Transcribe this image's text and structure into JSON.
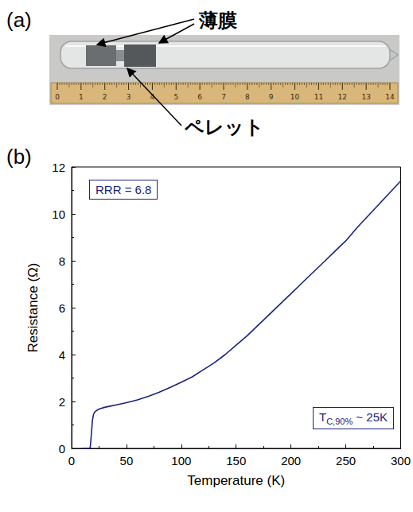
{
  "photo": {
    "letter": "(a)",
    "film_label": "薄膜",
    "pellet_label": "ペレット",
    "ruler_ticks": [
      0,
      1,
      2,
      3,
      4,
      5,
      6,
      7,
      8,
      9,
      10,
      11,
      12,
      13,
      14
    ]
  },
  "chart_letter": "(b)",
  "chart_data": {
    "type": "line",
    "x_label": "Temperature (K)",
    "y_label": "Resistance (Ω)",
    "x": [
      10,
      14,
      16,
      17,
      18,
      19,
      20,
      21,
      23,
      25,
      30,
      35,
      40,
      50,
      60,
      70,
      80,
      90,
      100,
      110,
      120,
      130,
      140,
      150,
      160,
      170,
      180,
      190,
      200,
      210,
      220,
      230,
      240,
      250,
      260,
      270,
      280,
      290,
      300
    ],
    "values": [
      0,
      0,
      0,
      0.05,
      0.6,
      1.2,
      1.45,
      1.55,
      1.62,
      1.68,
      1.75,
      1.8,
      1.85,
      1.95,
      2.07,
      2.22,
      2.4,
      2.6,
      2.82,
      3.05,
      3.35,
      3.65,
      4.0,
      4.4,
      4.8,
      5.25,
      5.7,
      6.15,
      6.6,
      7.05,
      7.5,
      7.95,
      8.4,
      8.85,
      9.4,
      9.9,
      10.4,
      10.9,
      11.4
    ],
    "color": "#1a237e",
    "xlim": [
      0,
      300
    ],
    "xticks": [
      0,
      50,
      100,
      150,
      200,
      250,
      300
    ],
    "ylim": [
      0,
      12
    ],
    "yticks": [
      0,
      2,
      4,
      6,
      8,
      10,
      12
    ],
    "grid": false,
    "marker": "none",
    "line_style": "solid",
    "annotations": {
      "rrr": "RRR = 6.8",
      "tc": {
        "symbol": "T",
        "subscript": "C,90%",
        "text": " ~ 25K"
      }
    }
  }
}
